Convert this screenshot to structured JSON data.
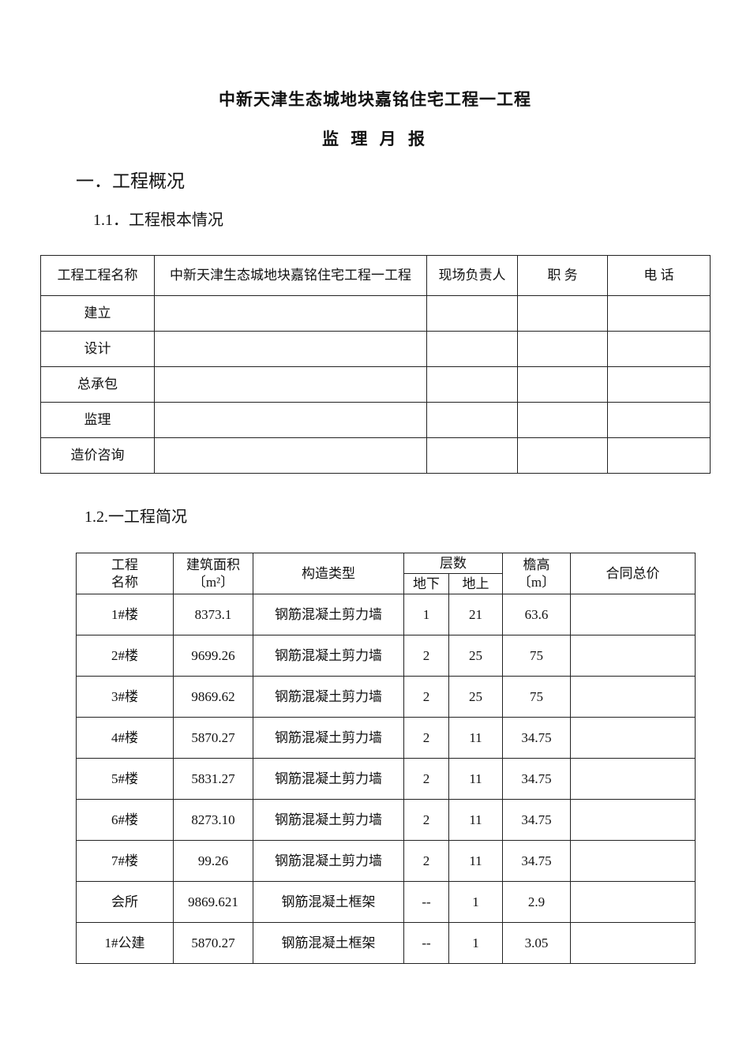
{
  "title": "中新天津生态城地块嘉铭住宅工程一工程",
  "subtitle": "监 理 月 报",
  "section1": "一．工程概况",
  "section1_1": "1.1．工程根本情况",
  "table1": {
    "header": [
      "工程工程名称",
      "中新天津生态城地块嘉铭住宅工程一工程",
      "现场负责人",
      "职 务",
      "电 话"
    ],
    "rows": [
      "建立",
      "设计",
      "总承包",
      "监理",
      "造价咨询"
    ]
  },
  "section1_2": "1.2.一工程简况",
  "table2": {
    "header": {
      "name": "工程\n名称",
      "area": "建筑面积\n〔m²〕",
      "structure": "构造类型",
      "floors": "层数",
      "below": "地下",
      "above": "地上",
      "height": "檐高\n〔m〕",
      "price": "合同总价"
    },
    "rows": [
      {
        "name": "1#楼",
        "area": "8373.1",
        "structure": "钢筋混凝土剪力墙",
        "below": "1",
        "above": "21",
        "height": "63.6",
        "price": ""
      },
      {
        "name": "2#楼",
        "area": "9699.26",
        "structure": "钢筋混凝土剪力墙",
        "below": "2",
        "above": "25",
        "height": "75",
        "price": ""
      },
      {
        "name": "3#楼",
        "area": "9869.62",
        "structure": "钢筋混凝土剪力墙",
        "below": "2",
        "above": "25",
        "height": "75",
        "price": ""
      },
      {
        "name": "4#楼",
        "area": "5870.27",
        "structure": "钢筋混凝土剪力墙",
        "below": "2",
        "above": "11",
        "height": "34.75",
        "price": ""
      },
      {
        "name": "5#楼",
        "area": "5831.27",
        "structure": "钢筋混凝土剪力墙",
        "below": "2",
        "above": "11",
        "height": "34.75",
        "price": ""
      },
      {
        "name": "6#楼",
        "area": "8273.10",
        "structure": "钢筋混凝土剪力墙",
        "below": "2",
        "above": "11",
        "height": "34.75",
        "price": ""
      },
      {
        "name": "7#楼",
        "area": "99.26",
        "structure": "钢筋混凝土剪力墙",
        "below": "2",
        "above": "11",
        "height": "34.75",
        "price": ""
      },
      {
        "name": "会所",
        "area": "9869.621",
        "structure": "钢筋混凝土框架",
        "below": "--",
        "above": "1",
        "height": "2.9",
        "price": ""
      },
      {
        "name": "1#公建",
        "area": "5870.27",
        "structure": "钢筋混凝土框架",
        "below": "--",
        "above": "1",
        "height": "3.05",
        "price": ""
      }
    ]
  }
}
